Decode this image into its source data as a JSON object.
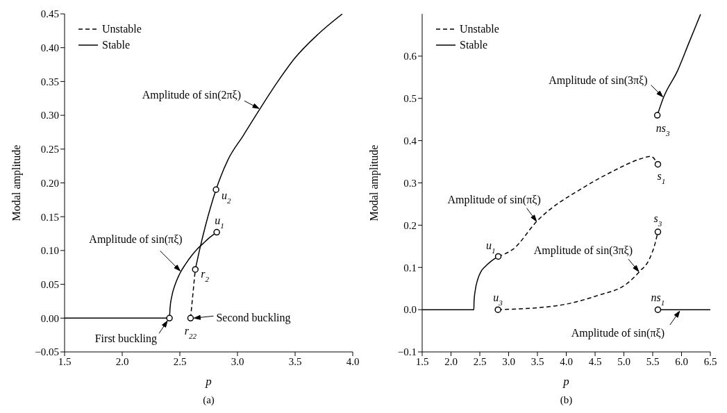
{
  "chart_data": [
    {
      "type": "line",
      "title": "(a)",
      "xlabel": "p",
      "ylabel": "Modal amplitude",
      "legend": "top left",
      "xlim": [
        1.5,
        4.0
      ],
      "xticks": [
        1.5,
        {
          "value": 2.0,
          "label": "2.0"
        },
        2.5,
        {
          "value": 3.0,
          "label": "3.0"
        },
        3.5,
        {
          "value": 4.0,
          "label": "4.0"
        }
      ],
      "ylim": [
        -0.05,
        0.45
      ],
      "yticks": [
        {
          "value": -0.05,
          "label": "−0.05"
        },
        {
          "value": 0,
          "label": "0.00"
        },
        0.05,
        {
          "value": 0.1,
          "label": "0.10"
        },
        0.15,
        {
          "value": 0.2,
          "label": "0.20"
        },
        0.25,
        {
          "value": 0.3,
          "label": "0.30"
        },
        0.35,
        {
          "value": 0.4,
          "label": "0.40"
        },
        0.45
      ],
      "series": [
        {
          "type": "line",
          "name": "Unstable",
          "color": "#000000",
          "line_style": "dashed",
          "x": [
            2.593,
            2.634
          ],
          "values": [
            0,
            0.072
          ]
        },
        {
          "type": "line",
          "name": "Stable",
          "color": "#000000",
          "line_style": "solid",
          "x": [
            1.5,
            2.41,
            2.415,
            2.43,
            2.46,
            2.5,
            2.55,
            2.6,
            2.65,
            2.7,
            2.75,
            2.82
          ],
          "values": [
            0,
            0,
            0.015,
            0.032,
            0.05,
            0.066,
            0.08,
            0.092,
            0.102,
            0.11,
            0.118,
            0.127
          ]
        },
        {
          "type": "line",
          "color": "#000000",
          "line_style": "solid",
          "x": [
            2.634,
            2.67,
            2.72,
            2.814,
            2.92,
            3.05,
            3.193,
            3.35,
            3.5,
            3.7,
            3.91
          ],
          "values": [
            0.072,
            0.1,
            0.135,
            0.19,
            0.235,
            0.27,
            0.309,
            0.35,
            0.385,
            0.42,
            0.45
          ]
        },
        {
          "type": "scatter",
          "color": "#000000",
          "marker": "circle",
          "x": [
            2.41,
            2.593,
            2.634,
            2.82,
            2.814
          ],
          "values": [
            0,
            0,
            0.072,
            0.127,
            0.19
          ]
        }
      ],
      "annotations": [
        {
          "text": "Amplitude of sin(2πξ)",
          "x": 3.193,
          "y": 0.309
        },
        {
          "text": "Amplitude of sin(πξ)",
          "x": 2.509,
          "y": 0.0688
        },
        {
          "text": "First buckling",
          "x": 2.41,
          "y": 0
        },
        {
          "text": "Second buckling",
          "x": 2.593,
          "y": 0
        },
        {
          "text": "u$_{2}$",
          "x": 2.814,
          "y": 0.19
        },
        {
          "text": "u$_{1}$",
          "x": 2.82,
          "y": 0.127
        },
        {
          "text": "r$_{2}$",
          "x": 2.634,
          "y": 0.072
        },
        {
          "text": "r$_{22}$",
          "x": 2.593,
          "y": 0
        }
      ]
    },
    {
      "type": "line",
      "title": "(b)",
      "xlabel": "p",
      "ylabel": "Modal amplitude",
      "legend": "top left",
      "xlim": [
        1.5,
        6.5
      ],
      "xticks": [
        1.5,
        {
          "value": 2.0,
          "label": "2.0"
        },
        2.5,
        {
          "value": 3.0,
          "label": "3.0"
        },
        3.5,
        {
          "value": 4.0,
          "label": "4.0"
        },
        4.5,
        {
          "value": 5.0,
          "label": "5.0"
        },
        5.5,
        {
          "value": 6.0,
          "label": "6.0"
        },
        6.5
      ],
      "ylim": [
        -0.1,
        0.7
      ],
      "yticks": [
        {
          "value": -0.1,
          "label": "−0.1"
        },
        {
          "value": 0,
          "label": "0.0"
        },
        0.1,
        0.2,
        0.3,
        0.4,
        0.5,
        0.6
      ],
      "series": [
        {
          "type": "line",
          "name": "Unstable",
          "color": "#000000",
          "line_style": "dashed",
          "x": [
            2.82,
            3.076,
            3.495,
            4.31,
            4.8,
            5.29,
            5.466,
            5.59
          ],
          "values": [
            0.126,
            0.143,
            0.21,
            0.29,
            0.327,
            0.357,
            0.363,
            0.344
          ]
        },
        {
          "type": "line",
          "name": "Stable",
          "color": "#000000",
          "line_style": "solid",
          "x": [
            1.5,
            2.397,
            2.4,
            2.42,
            2.46,
            2.52,
            2.6,
            2.7,
            2.82
          ],
          "values": [
            0,
            0,
            0.02,
            0.045,
            0.07,
            0.09,
            0.103,
            0.115,
            0.126
          ]
        },
        {
          "type": "line",
          "color": "#000000",
          "line_style": "dashed",
          "x": [
            2.815,
            3.815,
            4.554,
            5.047,
            5.27,
            5.44,
            5.54,
            5.59
          ],
          "values": [
            0,
            0.009,
            0.034,
            0.061,
            0.09,
            0.119,
            0.156,
            0.184
          ]
        },
        {
          "type": "line",
          "color": "#000000",
          "line_style": "solid",
          "x": [
            5.59,
            6.5
          ],
          "values": [
            0,
            0
          ]
        },
        {
          "type": "line",
          "color": "#000000",
          "line_style": "solid",
          "x": [
            5.58,
            5.687,
            5.93,
            6.13,
            6.33
          ],
          "values": [
            0.46,
            0.502,
            0.565,
            0.632,
            0.699
          ]
        },
        {
          "type": "scatter",
          "color": "#000000",
          "marker": "circle",
          "x": [
            2.82,
            2.815,
            5.59,
            5.59,
            5.59,
            5.58
          ],
          "values": [
            0.126,
            0,
            0.344,
            0.184,
            0,
            0.46
          ]
        }
      ],
      "annotations": [
        {
          "text": "Amplitude of sin(3πξ)",
          "x": 5.687,
          "y": 0.502
        },
        {
          "text": "Amplitude of sin(πξ)",
          "x": 3.495,
          "y": 0.2075
        },
        {
          "text": "Amplitude of sin(3πξ)",
          "x": 5.27,
          "y": 0.0885
        },
        {
          "text": "Amplitude of sin(πξ)",
          "x": 5.98,
          "y": 0
        },
        {
          "text": "u$_{1}$",
          "x": 2.82,
          "y": 0.126
        },
        {
          "text": "u$_{3}$",
          "x": 2.815,
          "y": 0
        },
        {
          "text": "s$_{1}$",
          "x": 5.59,
          "y": 0.344
        },
        {
          "text": "s$_{3}$",
          "x": 5.59,
          "y": 0.184
        },
        {
          "text": "ns$_{1}$",
          "x": 5.59,
          "y": 0
        },
        {
          "text": "ns$_{3}$",
          "x": 5.58,
          "y": 0.46
        }
      ]
    }
  ]
}
